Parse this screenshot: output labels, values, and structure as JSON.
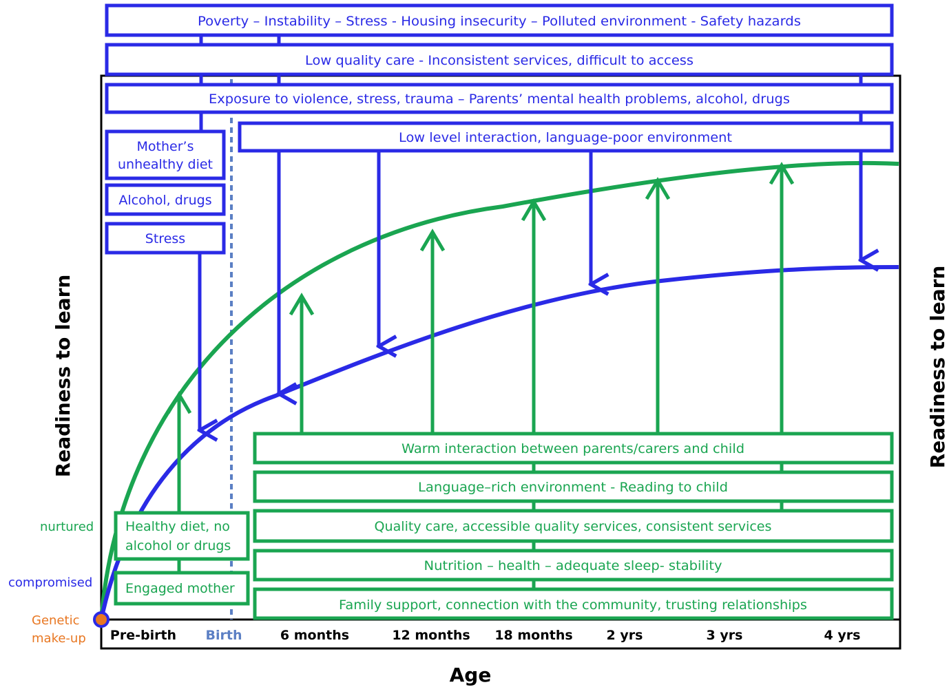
{
  "axes": {
    "y_left": "Readiness  to learn",
    "y_right": "Readiness  to learn",
    "x": "Age"
  },
  "age_ticks": [
    "Pre-birth",
    "Birth",
    "6 months",
    "12 months",
    "18 months",
    "2 yrs",
    "3 yrs",
    "4 yrs"
  ],
  "levels": {
    "nurtured": "nurtured",
    "compromised": "compromised",
    "genetic_line1": "Genetic",
    "genetic_line2": "make-up"
  },
  "negative_factors": {
    "row1": "Poverty – Instability – Stress - Housing insecurity – Polluted environment - Safety hazards",
    "row2": "Low quality care - Inconsistent services, difficult to access",
    "row3": "Exposure to violence, stress, trauma – Parents’ mental health problems, alcohol, drugs",
    "row4": "Low level interaction, language-poor environment",
    "prenatal1_line1": "Mother’s",
    "prenatal1_line2": "unhealthy diet",
    "prenatal2": "Alcohol, drugs",
    "prenatal3": "Stress"
  },
  "positive_factors": {
    "row1": "Warm interaction between parents/carers and child",
    "row2": "Language–rich environment - Reading to child",
    "row3": "Quality care, accessible quality services, consistent services",
    "row4": "Nutrition – health – adequate sleep- stability",
    "row5": "Family support, connection with the community, trusting relationships",
    "prenatal1_line1": "Healthy diet, no",
    "prenatal1_line2": "alcohol or drugs",
    "prenatal2": "Engaged mother"
  },
  "colors": {
    "negative": "#2a2ae6",
    "positive": "#1aa551",
    "origin": "#e87722",
    "birth_line": "#5b7fc4"
  }
}
